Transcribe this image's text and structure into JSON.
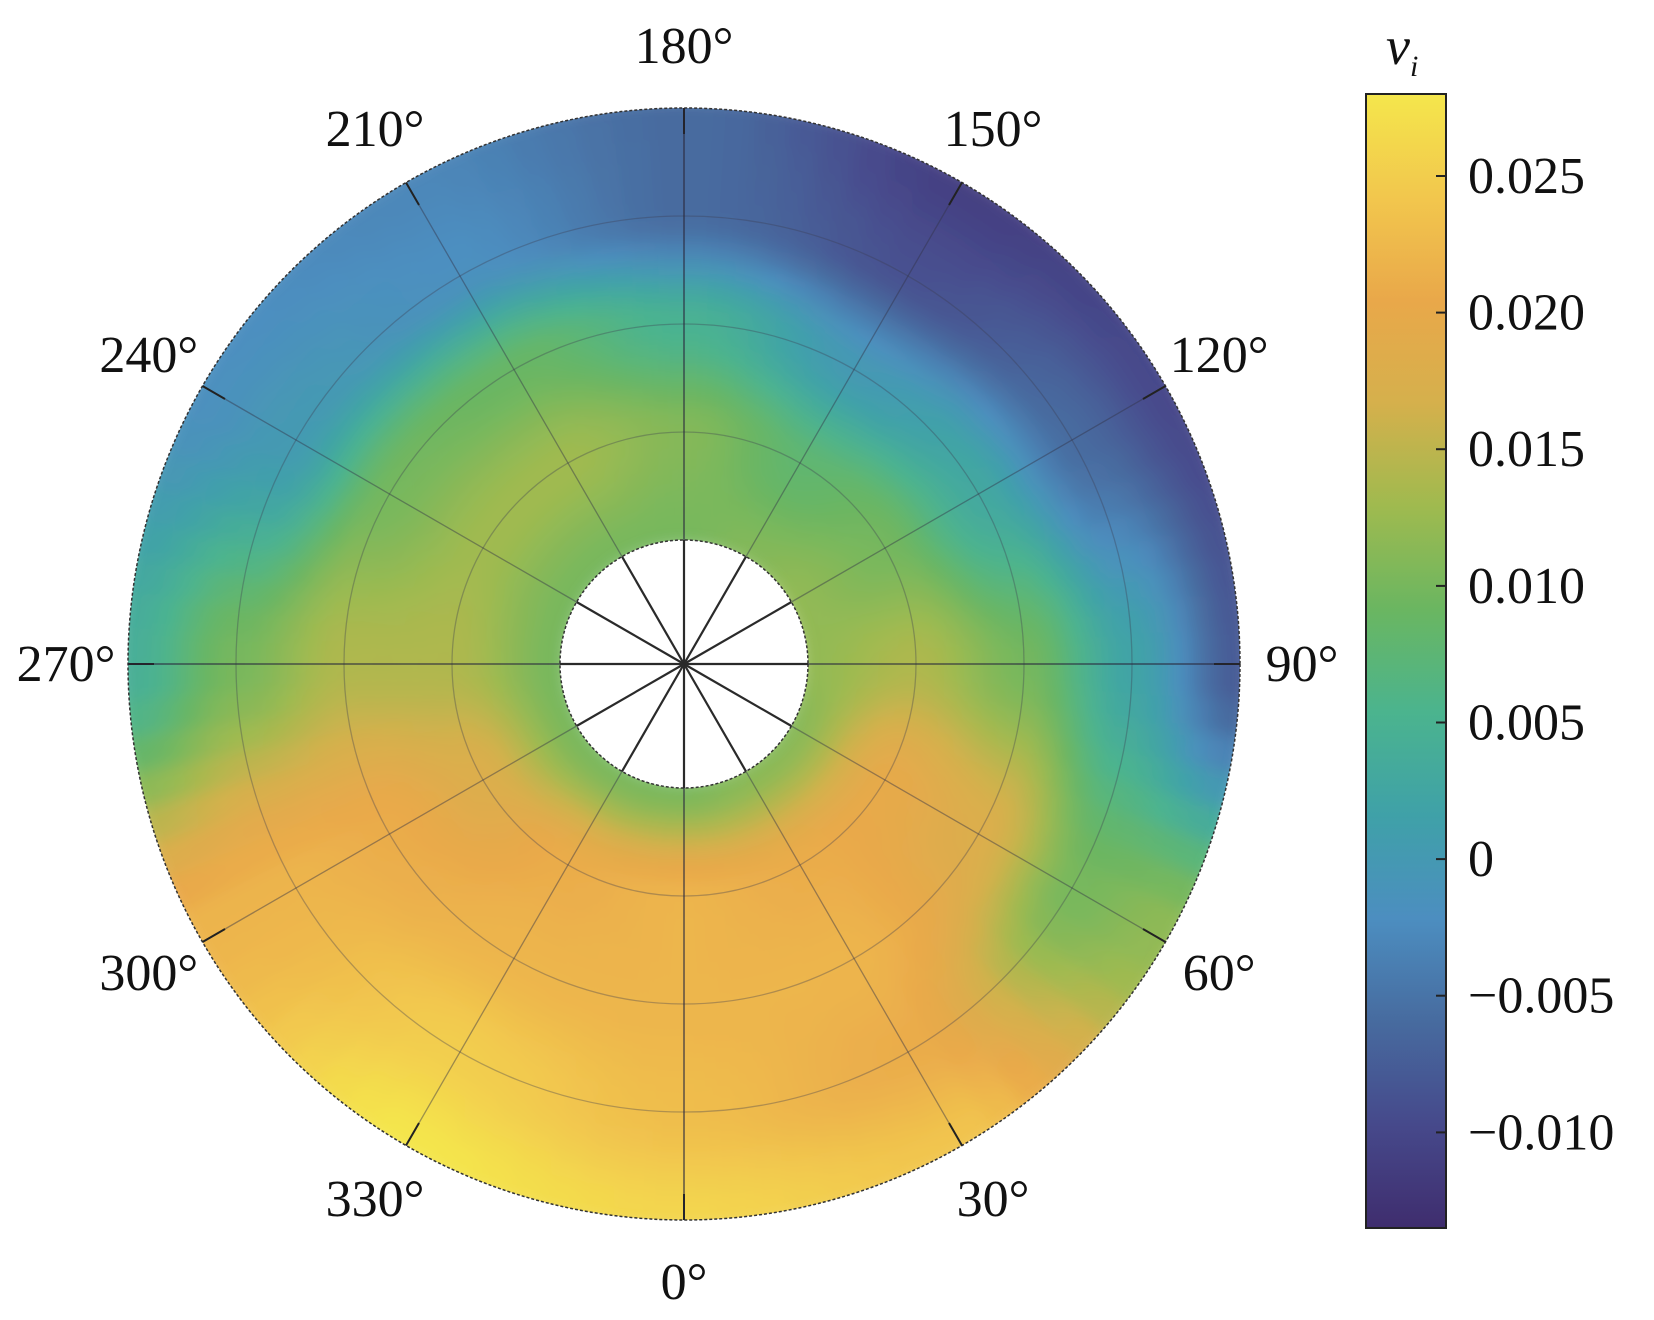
{
  "chart_data": {
    "type": "heatmap",
    "subtype": "polar-annulus",
    "angle_zero": "bottom",
    "angle_direction": "counterclockwise",
    "angular_ticks": [
      "0°",
      "30°",
      "60°",
      "90°",
      "120°",
      "150°",
      "180°",
      "210°",
      "240°",
      "270°",
      "300°",
      "330°"
    ],
    "angular_tick_values": [
      0,
      30,
      60,
      90,
      120,
      150,
      180,
      210,
      240,
      270,
      300,
      330
    ],
    "radial_gridlines": 4,
    "grid": true,
    "colorbar": {
      "title_main": "v",
      "title_sub": "i",
      "range": [
        -0.0135,
        0.028
      ],
      "ticks": [
        -0.01,
        -0.005,
        0,
        0.005,
        0.01,
        0.015,
        0.02,
        0.025
      ],
      "tick_labels": [
        "−0.010",
        "−0.005",
        "0",
        "0.005",
        "0.010",
        "0.015",
        "0.020",
        "0.025"
      ],
      "placement": "right"
    },
    "colormap": [
      "#3f2d6e",
      "#46498b",
      "#476b9f",
      "#4c8ec0",
      "#3fa1a8",
      "#4bb48e",
      "#6ab661",
      "#9fba4f",
      "#d5b04c",
      "#e9a84a",
      "#f2c74d",
      "#f4e64c"
    ],
    "field_description_ring_values": {
      "radii_fraction": [
        0.0,
        0.25,
        0.5,
        0.75,
        1.0
      ],
      "angles_deg": [
        0,
        30,
        60,
        90,
        120,
        150,
        180,
        210,
        240,
        270,
        300,
        330
      ],
      "values": [
        [
          0.01,
          0.011,
          0.011,
          0.012,
          0.012,
          0.011,
          0.01,
          0.01,
          0.01,
          0.01,
          0.01,
          0.01
        ],
        [
          0.022,
          0.021,
          0.02,
          0.014,
          0.01,
          0.008,
          0.011,
          0.013,
          0.013,
          0.014,
          0.018,
          0.021
        ],
        [
          0.022,
          0.022,
          0.018,
          0.01,
          0.003,
          0.0,
          0.005,
          0.009,
          0.01,
          0.014,
          0.021,
          0.022
        ],
        [
          0.023,
          0.021,
          0.01,
          0.002,
          -0.006,
          -0.009,
          -0.006,
          -0.002,
          0.0,
          0.01,
          0.022,
          0.025
        ],
        [
          0.026,
          0.024,
          0.012,
          -0.008,
          -0.01,
          -0.011,
          -0.006,
          -0.003,
          -0.002,
          0.004,
          0.022,
          0.028
        ]
      ]
    }
  }
}
